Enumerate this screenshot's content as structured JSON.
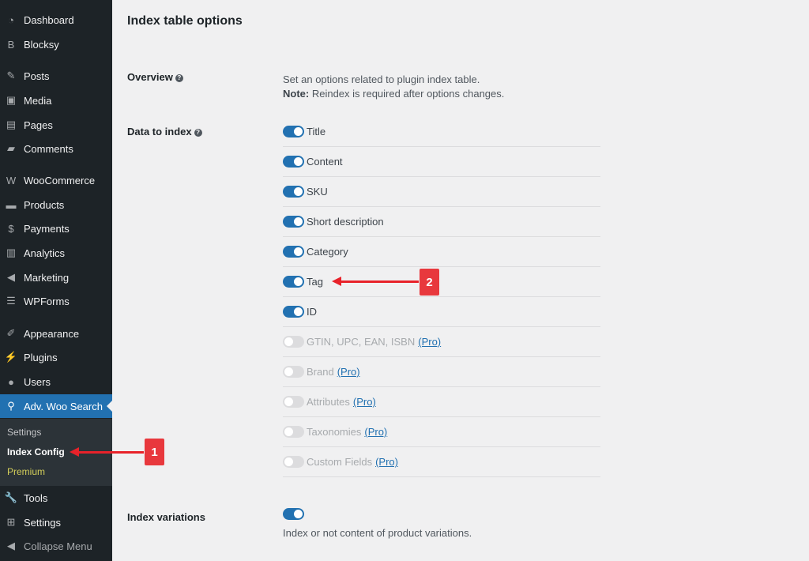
{
  "sidebar": {
    "items": [
      {
        "label": "Dashboard",
        "icon": "dashboard-icon",
        "glyph": "◔"
      },
      {
        "label": "Blocksy",
        "icon": "blocksy-icon",
        "glyph": "B"
      },
      {
        "label": "Posts",
        "icon": "pin-icon",
        "glyph": "✎"
      },
      {
        "label": "Media",
        "icon": "media-icon",
        "glyph": "▣"
      },
      {
        "label": "Pages",
        "icon": "pages-icon",
        "glyph": "▤"
      },
      {
        "label": "Comments",
        "icon": "comment-icon",
        "glyph": "▰"
      },
      {
        "label": "WooCommerce",
        "icon": "woocommerce-icon",
        "glyph": "W"
      },
      {
        "label": "Products",
        "icon": "archive-icon",
        "glyph": "▬"
      },
      {
        "label": "Payments",
        "icon": "payments-icon",
        "glyph": "$"
      },
      {
        "label": "Analytics",
        "icon": "bar-chart-icon",
        "glyph": "▥"
      },
      {
        "label": "Marketing",
        "icon": "megaphone-icon",
        "glyph": "◀"
      },
      {
        "label": "WPForms",
        "icon": "form-icon",
        "glyph": "☰"
      },
      {
        "label": "Appearance",
        "icon": "brush-icon",
        "glyph": "✐"
      },
      {
        "label": "Plugins",
        "icon": "plug-icon",
        "glyph": "⚡"
      },
      {
        "label": "Users",
        "icon": "user-icon",
        "glyph": "●"
      },
      {
        "label": "Adv. Woo Search",
        "icon": "search-icon",
        "glyph": "⚲"
      },
      {
        "label": "Tools",
        "icon": "wrench-icon",
        "glyph": "🔧"
      },
      {
        "label": "Settings",
        "icon": "sliders-icon",
        "glyph": "⊞"
      },
      {
        "label": "Collapse Menu",
        "icon": "collapse-icon",
        "glyph": "◀"
      }
    ],
    "submenu": [
      "Settings",
      "Index Config",
      "Premium"
    ]
  },
  "page": {
    "title": "Index table options",
    "overview": {
      "label": "Overview",
      "desc": "Set an options related to plugin index table.",
      "note_label": "Note:",
      "note": " Reindex is required after options changes."
    },
    "data_to_index": {
      "label": "Data to index",
      "items": [
        {
          "label": "Title",
          "on": true
        },
        {
          "label": "Content",
          "on": true
        },
        {
          "label": "SKU",
          "on": true
        },
        {
          "label": "Short description",
          "on": true
        },
        {
          "label": "Category",
          "on": true
        },
        {
          "label": "Tag",
          "on": true
        },
        {
          "label": "ID",
          "on": true
        },
        {
          "label": "GTIN, UPC, EAN, ISBN",
          "on": false,
          "pro": "(Pro)"
        },
        {
          "label": "Brand",
          "on": false,
          "pro": "(Pro)"
        },
        {
          "label": "Attributes",
          "on": false,
          "pro": "(Pro)"
        },
        {
          "label": "Taxonomies",
          "on": false,
          "pro": "(Pro)"
        },
        {
          "label": "Custom Fields",
          "on": false,
          "pro": "(Pro)"
        }
      ]
    },
    "index_variations": {
      "label": "Index variations",
      "on": true,
      "desc": "Index or not content of product variations."
    }
  },
  "annotations": [
    "1",
    "2"
  ],
  "colors": {
    "accent": "#2271b1",
    "sidebar": "#1d2327",
    "annotation": "#e8383d"
  }
}
